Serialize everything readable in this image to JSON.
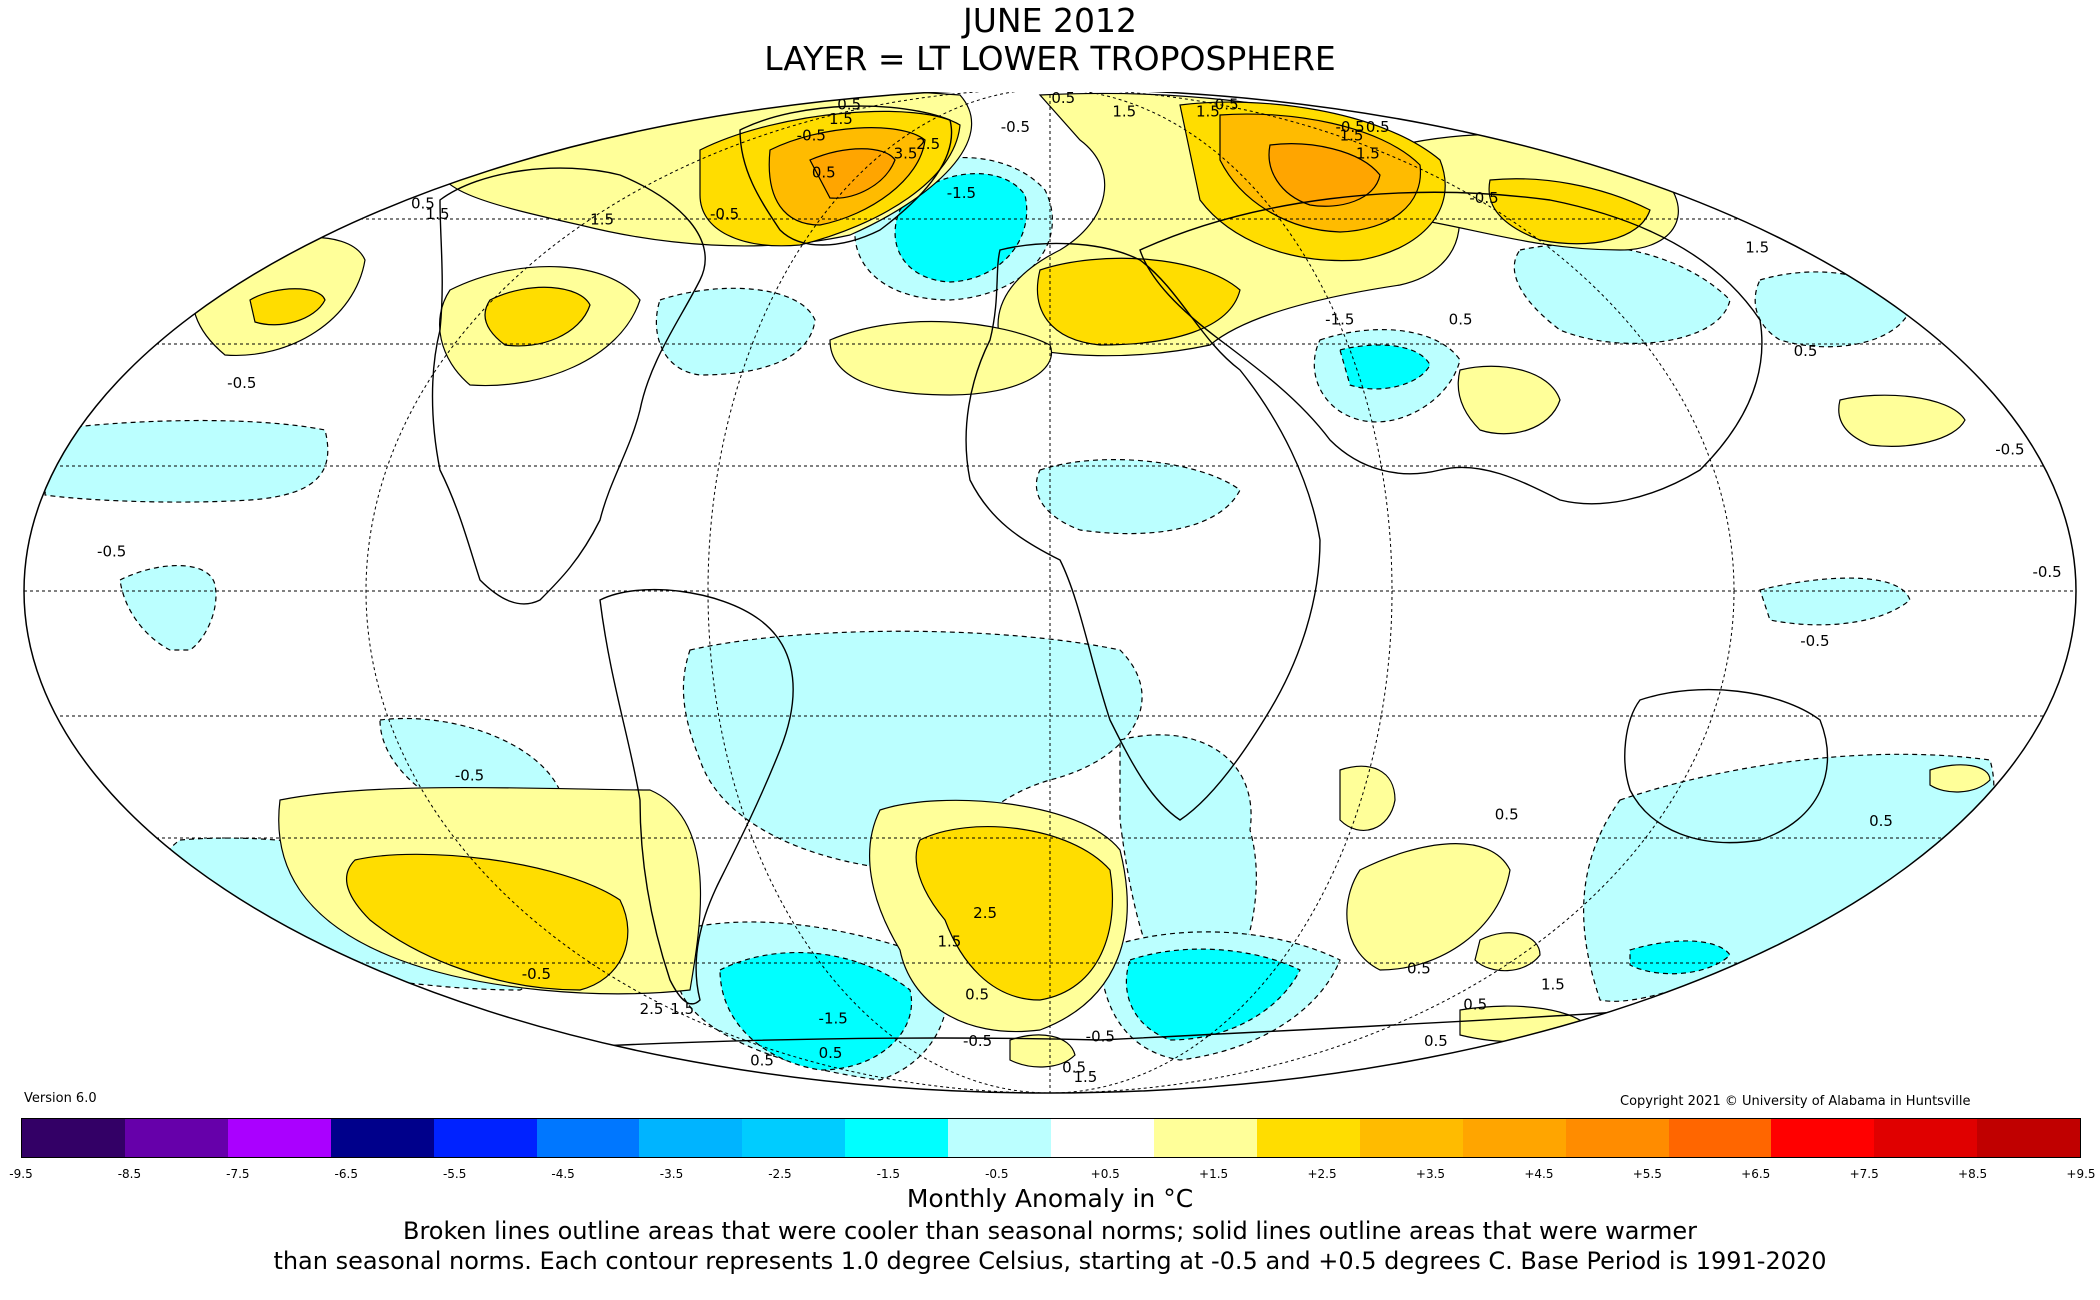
{
  "title": {
    "line1": "JUNE 2012",
    "line2": "LAYER = LT LOWER TROPOSPHERE"
  },
  "version": "Version 6.0",
  "copyright": "Copyright 2021 © University of Alabama in Huntsville",
  "legend": {
    "ticks": [
      "-9.5",
      "-8.5",
      "-7.5",
      "-6.5",
      "-5.5",
      "-4.5",
      "-3.5",
      "-2.5",
      "-1.5",
      "-0.5",
      "+0.5",
      "+1.5",
      "+2.5",
      "+3.5",
      "+4.5",
      "+5.5",
      "+6.5",
      "+7.5",
      "+8.5",
      "+9.5"
    ],
    "colors": [
      "#330066",
      "#6600aa",
      "#aa00ff",
      "#00008b",
      "#0022ff",
      "#0077ff",
      "#00b4ff",
      "#00ccff",
      "#00ffff",
      "#bbffff",
      "#ffffff",
      "#ffff99",
      "#ffdd00",
      "#ffbb00",
      "#ffa500",
      "#ff8c00",
      "#ff6600",
      "#ff0000",
      "#e00000",
      "#c00000"
    ],
    "units": "Monthly Anomaly in °C"
  },
  "caption": {
    "line1": "Broken lines outline areas that were cooler than seasonal norms; solid lines outline areas that were warmer",
    "line2": "than seasonal norms. Each contour represents 1.0 degree Celsius, starting at -0.5 and +0.5 degrees C. Base Period is 1991-2020"
  },
  "map": {
    "projection": "Mollweide",
    "contour_labels": [
      {
        "text": "0.5",
        "lon": -125,
        "lat": 82
      },
      {
        "text": "1.5",
        "lon": -100,
        "lat": 78
      },
      {
        "text": "-0.5",
        "lon": -95,
        "lat": 74
      },
      {
        "text": "3.5",
        "lon": -50,
        "lat": 70
      },
      {
        "text": "2.5",
        "lon": -45,
        "lat": 72
      },
      {
        "text": "0.5",
        "lon": -70,
        "lat": 66
      },
      {
        "text": "-0.5",
        "lon": -15,
        "lat": 76
      },
      {
        "text": "-1.5",
        "lon": -25,
        "lat": 62
      },
      {
        "text": "0.5",
        "lon": 10,
        "lat": 84
      },
      {
        "text": "1.5",
        "lon": 40,
        "lat": 80
      },
      {
        "text": "1.5",
        "lon": 85,
        "lat": 80
      },
      {
        "text": "0.5",
        "lon": 110,
        "lat": 82
      },
      {
        "text": "-0.5",
        "lon": 130,
        "lat": 76
      },
      {
        "text": "0.5",
        "lon": 142,
        "lat": 76
      },
      {
        "text": "1.5",
        "lon": 120,
        "lat": 74
      },
      {
        "text": "1.5",
        "lon": 110,
        "lat": 70
      },
      {
        "text": "-0.5",
        "lon": 120,
        "lat": 61
      },
      {
        "text": "0.5",
        "lon": -170,
        "lat": 60
      },
      {
        "text": "1.5",
        "lon": -160,
        "lat": 58
      },
      {
        "text": "1.5",
        "lon": -115,
        "lat": 57
      },
      {
        "text": "-0.5",
        "lon": -85,
        "lat": 58
      },
      {
        "text": "1.5",
        "lon": 168,
        "lat": 52
      },
      {
        "text": "-1.5",
        "lon": 60,
        "lat": 40
      },
      {
        "text": "0.5",
        "lon": 85,
        "lat": 40
      },
      {
        "text": "0.5",
        "lon": 150,
        "lat": 35
      },
      {
        "text": "-0.5",
        "lon": -155,
        "lat": 30
      },
      {
        "text": "-0.5",
        "lon": 175,
        "lat": 20
      },
      {
        "text": "-0.5",
        "lon": -165,
        "lat": 5
      },
      {
        "text": "-0.5",
        "lon": 175,
        "lat": 2
      },
      {
        "text": "-0.5",
        "lon": 135,
        "lat": -8
      },
      {
        "text": "-0.5",
        "lon": -110,
        "lat": -28
      },
      {
        "text": "0.5",
        "lon": 90,
        "lat": -34
      },
      {
        "text": "0.5",
        "lon": 165,
        "lat": -35
      },
      {
        "text": "2.5",
        "lon": -15,
        "lat": -50
      },
      {
        "text": "1.5",
        "lon": -25,
        "lat": -55
      },
      {
        "text": "0.5",
        "lon": -22,
        "lat": -65
      },
      {
        "text": "-0.5",
        "lon": -142,
        "lat": -61
      },
      {
        "text": "2.5",
        "lon": -130,
        "lat": -68
      },
      {
        "text": "1.5",
        "lon": -120,
        "lat": -68
      },
      {
        "text": "0.5",
        "lon": -105,
        "lat": -78
      },
      {
        "text": "0.5",
        "lon": -155,
        "lat": -80
      },
      {
        "text": "-1.5",
        "lon": -75,
        "lat": -70
      },
      {
        "text": "-0.5",
        "lon": -30,
        "lat": -75
      },
      {
        "text": "0.5",
        "lon": 15,
        "lat": -82
      },
      {
        "text": "-0.5",
        "lon": 20,
        "lat": -74
      },
      {
        "text": "1.5",
        "lon": 30,
        "lat": -85
      },
      {
        "text": "0.5",
        "lon": 100,
        "lat": -60
      },
      {
        "text": "0.5",
        "lon": 135,
        "lat": -67
      },
      {
        "text": "0.5",
        "lon": 160,
        "lat": -75
      },
      {
        "text": "1.5",
        "lon": 145,
        "lat": -63
      }
    ]
  }
}
